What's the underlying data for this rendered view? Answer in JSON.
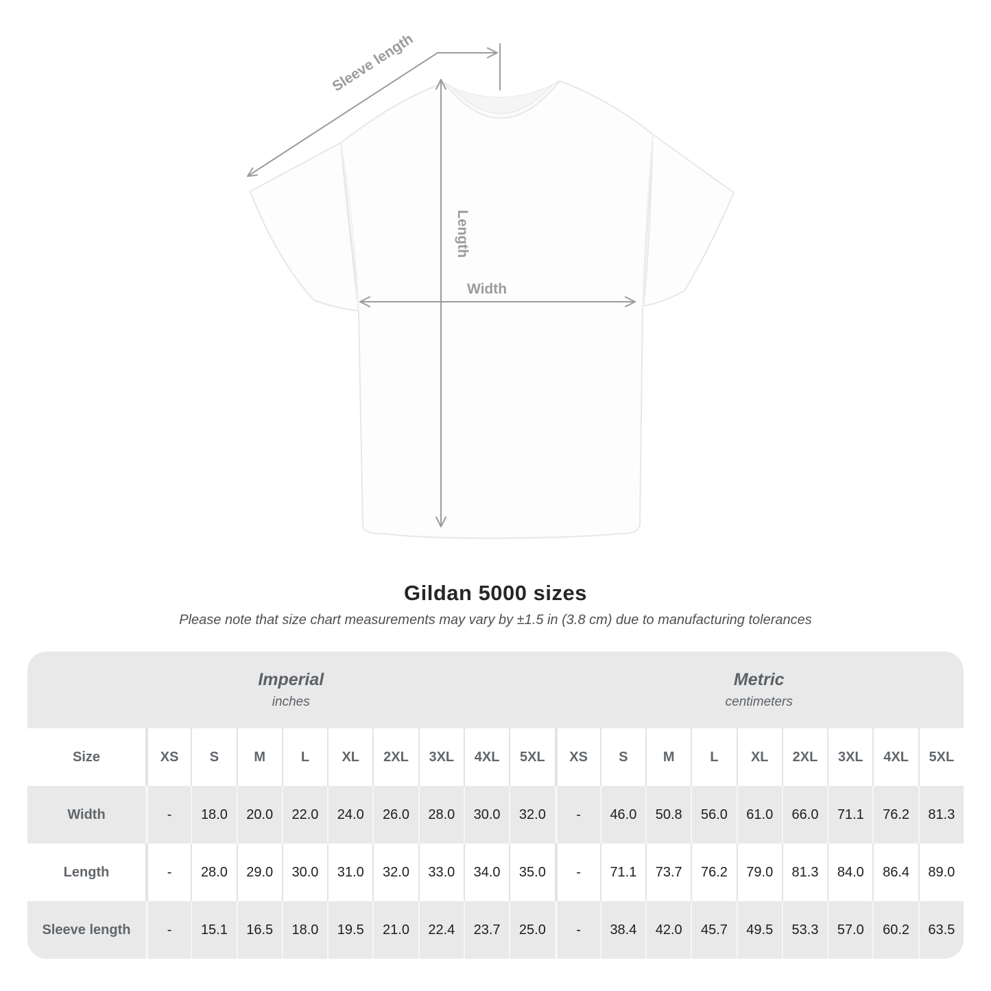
{
  "diagram": {
    "sleeve_length_label": "Sleeve length",
    "length_label": "Length",
    "width_label": "Width"
  },
  "heading": {
    "title": "Gildan 5000 sizes",
    "note": "Please note that size chart measurements may vary by ±1.5 in (3.8 cm) due to manufacturing tolerances"
  },
  "table": {
    "size_header": "Size",
    "sections": [
      {
        "title": "Imperial",
        "subtitle": "inches"
      },
      {
        "title": "Metric",
        "subtitle": "centimeters"
      }
    ],
    "columns": [
      "XS",
      "S",
      "M",
      "L",
      "XL",
      "2XL",
      "3XL",
      "4XL",
      "5XL"
    ],
    "rows": [
      {
        "label": "Width",
        "shade": "gray",
        "imperial": [
          "-",
          "18.0",
          "20.0",
          "22.0",
          "24.0",
          "26.0",
          "28.0",
          "30.0",
          "32.0"
        ],
        "metric": [
          "-",
          "46.0",
          "50.8",
          "56.0",
          "61.0",
          "66.0",
          "71.1",
          "76.2",
          "81.3"
        ]
      },
      {
        "label": "Length",
        "shade": "white",
        "imperial": [
          "-",
          "28.0",
          "29.0",
          "30.0",
          "31.0",
          "32.0",
          "33.0",
          "34.0",
          "35.0"
        ],
        "metric": [
          "-",
          "71.1",
          "73.7",
          "76.2",
          "79.0",
          "81.3",
          "84.0",
          "86.4",
          "89.0"
        ]
      },
      {
        "label": "Sleeve length",
        "shade": "gray",
        "imperial": [
          "-",
          "15.1",
          "16.5",
          "18.0",
          "19.5",
          "21.0",
          "22.4",
          "23.7",
          "25.0"
        ],
        "metric": [
          "-",
          "38.4",
          "42.0",
          "45.7",
          "49.5",
          "53.3",
          "57.0",
          "60.2",
          "63.5"
        ]
      }
    ]
  },
  "colors": {
    "band_bg": "#e9e9e9",
    "row_gray": "#e9e9e9",
    "header_text": "#61666b",
    "value_text": "#1d1d1d",
    "measure_gray": "#9b9b9b",
    "shirt_edge": "#e7e7e7"
  }
}
